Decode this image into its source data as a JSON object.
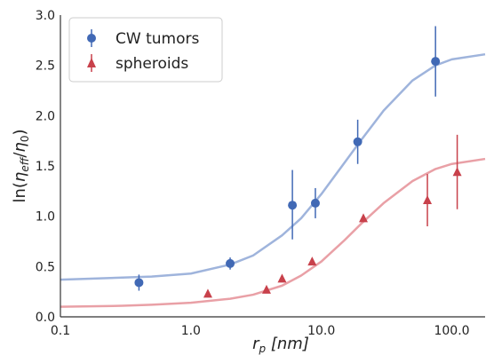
{
  "chart_data": {
    "type": "scatter",
    "xscale": "log",
    "xlim": [
      0.1,
      180
    ],
    "ylim": [
      0.0,
      3.0
    ],
    "grid": false,
    "legend_position": "top-left",
    "xlabel_parts": {
      "main": "r",
      "sub": "p",
      "unit": " [nm]"
    },
    "ylabel_parts": {
      "prefix": "ln(",
      "num": "η",
      "num_sub": "eff",
      "slash": "/",
      "den": "η",
      "den_sub": "0",
      "suffix": ")"
    },
    "x_ticks": [
      {
        "value": 0.1,
        "label": "0.1"
      },
      {
        "value": 1,
        "label": "1.0"
      },
      {
        "value": 10,
        "label": "10.0"
      },
      {
        "value": 100,
        "label": "100.0"
      }
    ],
    "y_ticks": [
      {
        "value": 0.0,
        "label": "0.0"
      },
      {
        "value": 0.5,
        "label": "0.5"
      },
      {
        "value": 1.0,
        "label": "1.0"
      },
      {
        "value": 1.5,
        "label": "1.5"
      },
      {
        "value": 2.0,
        "label": "2.0"
      },
      {
        "value": 2.5,
        "label": "2.5"
      },
      {
        "value": 3.0,
        "label": "3.0"
      }
    ],
    "series": [
      {
        "name": "CW tumors",
        "marker": "circle",
        "color": "#4169b5",
        "fit_color": "#9fb4dc",
        "points": [
          {
            "x": 0.4,
            "y": 0.34,
            "yerr_low": 0.26,
            "yerr_high": 0.42
          },
          {
            "x": 2.0,
            "y": 0.53,
            "yerr_low": 0.47,
            "yerr_high": 0.59
          },
          {
            "x": 6.0,
            "y": 1.11,
            "yerr_low": 0.77,
            "yerr_high": 1.46
          },
          {
            "x": 9.0,
            "y": 1.13,
            "yerr_low": 0.98,
            "yerr_high": 1.28
          },
          {
            "x": 19.0,
            "y": 1.74,
            "yerr_low": 1.52,
            "yerr_high": 1.96
          },
          {
            "x": 75.0,
            "y": 2.54,
            "yerr_low": 2.19,
            "yerr_high": 2.89
          }
        ],
        "fit": [
          {
            "x": 0.1,
            "y": 0.37
          },
          {
            "x": 0.3,
            "y": 0.39
          },
          {
            "x": 0.5,
            "y": 0.4
          },
          {
            "x": 1.0,
            "y": 0.43
          },
          {
            "x": 2.0,
            "y": 0.52
          },
          {
            "x": 3.0,
            "y": 0.61
          },
          {
            "x": 5.0,
            "y": 0.81
          },
          {
            "x": 7.0,
            "y": 0.98
          },
          {
            "x": 10.0,
            "y": 1.22
          },
          {
            "x": 15.0,
            "y": 1.53
          },
          {
            "x": 20.0,
            "y": 1.75
          },
          {
            "x": 30.0,
            "y": 2.05
          },
          {
            "x": 50.0,
            "y": 2.35
          },
          {
            "x": 75.0,
            "y": 2.5
          },
          {
            "x": 100.0,
            "y": 2.56
          },
          {
            "x": 180.0,
            "y": 2.61
          }
        ]
      },
      {
        "name": "spheroids",
        "marker": "triangle",
        "color": "#c8414b",
        "fit_color": "#e9a0a6",
        "points": [
          {
            "x": 1.35,
            "y": 0.23
          },
          {
            "x": 3.8,
            "y": 0.27
          },
          {
            "x": 5.0,
            "y": 0.38
          },
          {
            "x": 8.5,
            "y": 0.55
          },
          {
            "x": 21.0,
            "y": 0.98
          },
          {
            "x": 65.0,
            "y": 1.16,
            "yerr_low": 0.9,
            "yerr_high": 1.42
          },
          {
            "x": 110.0,
            "y": 1.44,
            "yerr_low": 1.07,
            "yerr_high": 1.81
          }
        ],
        "fit": [
          {
            "x": 0.1,
            "y": 0.1
          },
          {
            "x": 0.3,
            "y": 0.11
          },
          {
            "x": 0.5,
            "y": 0.12
          },
          {
            "x": 1.0,
            "y": 0.14
          },
          {
            "x": 2.0,
            "y": 0.18
          },
          {
            "x": 3.0,
            "y": 0.22
          },
          {
            "x": 5.0,
            "y": 0.31
          },
          {
            "x": 7.0,
            "y": 0.41
          },
          {
            "x": 10.0,
            "y": 0.55
          },
          {
            "x": 15.0,
            "y": 0.76
          },
          {
            "x": 20.0,
            "y": 0.92
          },
          {
            "x": 30.0,
            "y": 1.13
          },
          {
            "x": 50.0,
            "y": 1.35
          },
          {
            "x": 75.0,
            "y": 1.47
          },
          {
            "x": 100.0,
            "y": 1.52
          },
          {
            "x": 180.0,
            "y": 1.57
          }
        ]
      }
    ]
  }
}
